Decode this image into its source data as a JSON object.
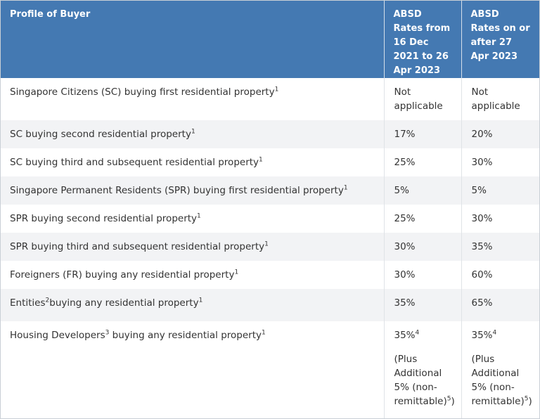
{
  "header": {
    "profile": "Profile of Buyer",
    "rate_old": "ABSD Rates from 16 Dec 2021 to 26 Apr 2023",
    "rate_new": "ABSD Rates on or after 27 Apr 2023"
  },
  "rows": [
    {
      "profile": "Singapore Citizens (SC) buying first residential property",
      "profile_sup": "1",
      "old": "Not applicable",
      "new": "Not applicable"
    },
    {
      "profile": "SC buying second residential property",
      "profile_sup": "1",
      "old": "17%",
      "new": "20%"
    },
    {
      "profile": "SC buying third and subsequent residential property",
      "profile_sup": "1",
      "old": "25%",
      "new": "30%"
    },
    {
      "profile": "Singapore Permanent Residents (SPR) buying first residential property",
      "profile_sup": "1",
      "old": "5%",
      "new": "5%"
    },
    {
      "profile": "SPR buying second residential property",
      "profile_sup": "1",
      "old": "25%",
      "new": "30%"
    },
    {
      "profile": "SPR buying third and subsequent residential property",
      "profile_sup": "1",
      "old": "30%",
      "new": "35%"
    },
    {
      "profile": "Foreigners (FR) buying any residential property",
      "profile_sup": "1",
      "old": "30%",
      "new": "60%"
    },
    {
      "profile_a": "Entities",
      "profile_a_sup": "2",
      "profile": "buying any residential property",
      "profile_sup": "1",
      "old": "35%",
      "new": "65%"
    },
    {
      "profile_a": "Housing Developers",
      "profile_a_sup": "3",
      "profile": " buying any residential property",
      "profile_sup": "1",
      "old": "35%",
      "old_sup": "4",
      "new": "35%",
      "new_sup": "4",
      "note": "(Plus Additional 5% (non-remittable)",
      "note_sup": "5",
      "note_end": ")"
    }
  ]
}
